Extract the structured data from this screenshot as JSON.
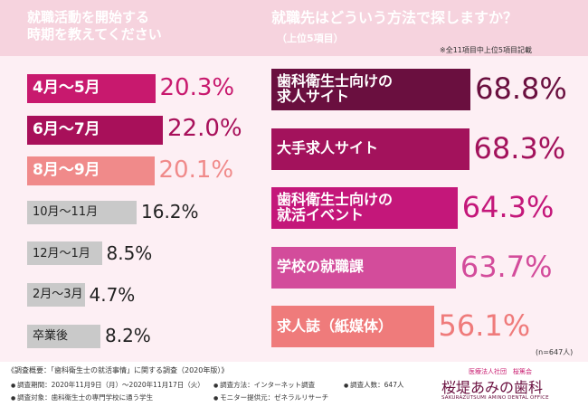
{
  "chart_data": [
    {
      "type": "bar",
      "title": "就職活動を開始する\n時期を教えてください",
      "categories": [
        "4月～5月",
        "6月～7月",
        "8月～9月",
        "10月～11月",
        "12月～1月",
        "2月～3月",
        "卒業後"
      ],
      "values": [
        20.3,
        22.0,
        20.1,
        16.2,
        8.5,
        4.7,
        8.2
      ],
      "value_labels": [
        "20.3%",
        "22.0%",
        "20.1%",
        "16.2%",
        "8.5%",
        "4.7%",
        "8.2%"
      ],
      "colors": [
        "#c8196e",
        "#a8105a",
        "#f08a8a",
        "#c9c9c9",
        "#c9c9c9",
        "#c9c9c9",
        "#c9c9c9"
      ],
      "value_colors": [
        "#c8196e",
        "#a8105a",
        "#f08a8a",
        "#222222",
        "#222222",
        "#222222",
        "#222222"
      ]
    },
    {
      "type": "bar",
      "title": "就職先はどういう方法で探しますか？",
      "subtitle": "（上位5項目）",
      "note": "※全11項目中上位5項目記載",
      "sample": "(n=647人)",
      "categories": [
        "歯科衛生士向けの\n求人サイト",
        "大手求人サイト",
        "歯科衛生士向けの\n就活イベント",
        "学校の就職課",
        "求人誌（紙媒体）"
      ],
      "values": [
        68.8,
        68.3,
        64.3,
        63.7,
        56.1
      ],
      "value_labels": [
        "68.8%",
        "68.3%",
        "64.3%",
        "63.7%",
        "56.1%"
      ],
      "colors": [
        "#6a0f3f",
        "#a3125c",
        "#c4177a",
        "#d34c9b",
        "#ef7b7b"
      ],
      "value_colors": [
        "#6a0f3f",
        "#a3125c",
        "#c4177a",
        "#d34c9b",
        "#ef7b7b"
      ]
    }
  ],
  "footer": {
    "heading": "《調査概要：「歯科衛生士の就活事情」に関する調査（2020年版）》",
    "items": [
      "調査期間：2020年11月9日（月）～2020年11月17日（火）",
      "調査方法：インターネット調査",
      "調査人数：647人",
      "調査対象：歯科衛生士の専門学校に通う学生",
      "モニター提供元：ゼネラルリサーチ"
    ]
  },
  "logo": {
    "org": "医療法人社団　桜篤会",
    "name": "桜堤あみの歯科",
    "english": "SAKURAZUTSUMI AMINO DENTAL OFFICE"
  }
}
